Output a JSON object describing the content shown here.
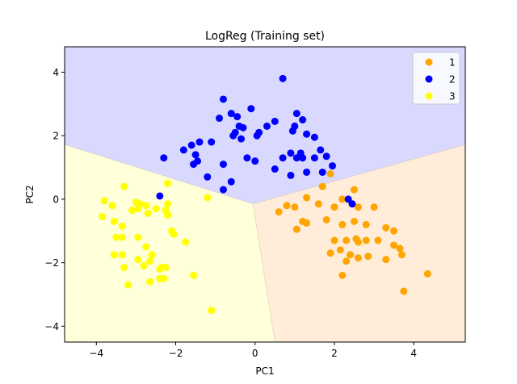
{
  "chart_data": {
    "type": "scatter",
    "title": "LogReg (Training set)",
    "xlabel": "PC1",
    "ylabel": "PC2",
    "xlim": [
      -4.8,
      5.3
    ],
    "ylim": [
      -4.5,
      4.8
    ],
    "xticks": [
      -4,
      -2,
      0,
      2,
      4
    ],
    "yticks": [
      -4,
      -2,
      0,
      2,
      4
    ],
    "tick_labels_x": [
      "−4",
      "−2",
      "0",
      "2",
      "4"
    ],
    "tick_labels_y": [
      "−4",
      "−2",
      "0",
      "2",
      "4"
    ],
    "legend_position": "top-right",
    "decision_regions": [
      {
        "class": "1",
        "color": "#ffecd9"
      },
      {
        "class": "2",
        "color": "#d9d9ff"
      },
      {
        "class": "3",
        "color": "#ffffd9"
      }
    ],
    "region_boundary_vertex": [
      -0.05,
      -0.15
    ],
    "series": [
      {
        "name": "1",
        "color": "#ffa500",
        "points": [
          [
            1.9,
            0.8
          ],
          [
            2.5,
            0.3
          ],
          [
            2.2,
            0.0
          ],
          [
            1.7,
            0.4
          ],
          [
            1.3,
            0.05
          ],
          [
            0.8,
            -0.2
          ],
          [
            0.6,
            -0.4
          ],
          [
            1.0,
            -0.25
          ],
          [
            1.6,
            -0.15
          ],
          [
            2.0,
            -0.25
          ],
          [
            2.6,
            -0.25
          ],
          [
            3.0,
            -0.25
          ],
          [
            1.2,
            -0.7
          ],
          [
            1.3,
            -0.75
          ],
          [
            1.8,
            -0.65
          ],
          [
            2.2,
            -0.8
          ],
          [
            2.5,
            -0.7
          ],
          [
            2.8,
            -0.8
          ],
          [
            3.3,
            -0.9
          ],
          [
            3.5,
            -1.0
          ],
          [
            1.05,
            -0.95
          ],
          [
            2.0,
            -1.3
          ],
          [
            2.3,
            -1.3
          ],
          [
            2.55,
            -1.25
          ],
          [
            2.6,
            -1.35
          ],
          [
            2.8,
            -1.3
          ],
          [
            3.1,
            -1.3
          ],
          [
            3.5,
            -1.45
          ],
          [
            3.65,
            -1.55
          ],
          [
            1.9,
            -1.7
          ],
          [
            2.15,
            -1.6
          ],
          [
            2.4,
            -1.75
          ],
          [
            2.6,
            -1.85
          ],
          [
            2.85,
            -1.8
          ],
          [
            3.3,
            -1.9
          ],
          [
            3.7,
            -1.75
          ],
          [
            2.3,
            -1.95
          ],
          [
            2.2,
            -2.4
          ],
          [
            4.35,
            -2.35
          ],
          [
            3.75,
            -2.9
          ]
        ]
      },
      {
        "name": "2",
        "color": "#0000ff",
        "points": [
          [
            0.7,
            3.8
          ],
          [
            -0.8,
            3.15
          ],
          [
            -0.1,
            2.85
          ],
          [
            1.05,
            2.7
          ],
          [
            1.2,
            2.5
          ],
          [
            -0.6,
            2.7
          ],
          [
            -0.45,
            2.6
          ],
          [
            0.5,
            2.45
          ],
          [
            -0.9,
            2.55
          ],
          [
            0.3,
            2.3
          ],
          [
            -0.4,
            2.3
          ],
          [
            1.0,
            2.3
          ],
          [
            -0.3,
            2.25
          ],
          [
            -0.5,
            2.1
          ],
          [
            0.1,
            2.1
          ],
          [
            0.95,
            2.15
          ],
          [
            1.3,
            2.05
          ],
          [
            0.05,
            2.0
          ],
          [
            -0.55,
            2.0
          ],
          [
            -0.35,
            1.9
          ],
          [
            1.5,
            1.95
          ],
          [
            -1.4,
            1.8
          ],
          [
            -1.1,
            1.8
          ],
          [
            -1.6,
            1.7
          ],
          [
            -1.8,
            1.55
          ],
          [
            1.65,
            1.55
          ],
          [
            -1.5,
            1.4
          ],
          [
            -1.45,
            1.2
          ],
          [
            -1.55,
            1.1
          ],
          [
            -0.2,
            1.3
          ],
          [
            0.7,
            1.3
          ],
          [
            1.05,
            1.3
          ],
          [
            1.2,
            1.3
          ],
          [
            1.5,
            1.3
          ],
          [
            1.8,
            1.35
          ],
          [
            0.9,
            1.45
          ],
          [
            1.15,
            1.45
          ],
          [
            -0.8,
            1.1
          ],
          [
            0.0,
            1.2
          ],
          [
            -2.3,
            1.3
          ],
          [
            1.95,
            1.05
          ],
          [
            1.3,
            0.85
          ],
          [
            1.7,
            0.85
          ],
          [
            0.5,
            0.95
          ],
          [
            0.9,
            0.75
          ],
          [
            -1.2,
            0.7
          ],
          [
            -0.6,
            0.55
          ],
          [
            -0.8,
            0.3
          ],
          [
            -2.4,
            0.1
          ],
          [
            2.35,
            0.0
          ],
          [
            2.45,
            -0.15
          ]
        ]
      },
      {
        "name": "3",
        "color": "#ffff00",
        "points": [
          [
            -2.2,
            0.5
          ],
          [
            -3.3,
            0.4
          ],
          [
            -1.2,
            0.05
          ],
          [
            -3.8,
            -0.05
          ],
          [
            -3.0,
            -0.1
          ],
          [
            -2.2,
            -0.15
          ],
          [
            -3.6,
            -0.2
          ],
          [
            -2.9,
            -0.15
          ],
          [
            -2.75,
            -0.2
          ],
          [
            -2.95,
            -0.3
          ],
          [
            -2.5,
            -0.3
          ],
          [
            -2.25,
            -0.35
          ],
          [
            -3.1,
            -0.35
          ],
          [
            -2.7,
            -0.45
          ],
          [
            -2.2,
            -0.5
          ],
          [
            -3.85,
            -0.55
          ],
          [
            -3.55,
            -0.7
          ],
          [
            -3.35,
            -0.85
          ],
          [
            -2.1,
            -1.0
          ],
          [
            -2.05,
            -1.1
          ],
          [
            -3.5,
            -1.2
          ],
          [
            -3.35,
            -1.2
          ],
          [
            -2.95,
            -1.2
          ],
          [
            -1.75,
            -1.35
          ],
          [
            -2.75,
            -1.5
          ],
          [
            -3.55,
            -1.75
          ],
          [
            -2.6,
            -1.75
          ],
          [
            -3.35,
            -1.75
          ],
          [
            -2.95,
            -1.9
          ],
          [
            -2.65,
            -1.95
          ],
          [
            -2.8,
            -2.1
          ],
          [
            -2.35,
            -2.15
          ],
          [
            -2.4,
            -2.2
          ],
          [
            -2.25,
            -2.15
          ],
          [
            -3.3,
            -2.15
          ],
          [
            -1.55,
            -2.4
          ],
          [
            -2.4,
            -2.5
          ],
          [
            -2.3,
            -2.5
          ],
          [
            -2.65,
            -2.6
          ],
          [
            -3.2,
            -2.7
          ],
          [
            -1.1,
            -3.5
          ]
        ]
      }
    ]
  }
}
